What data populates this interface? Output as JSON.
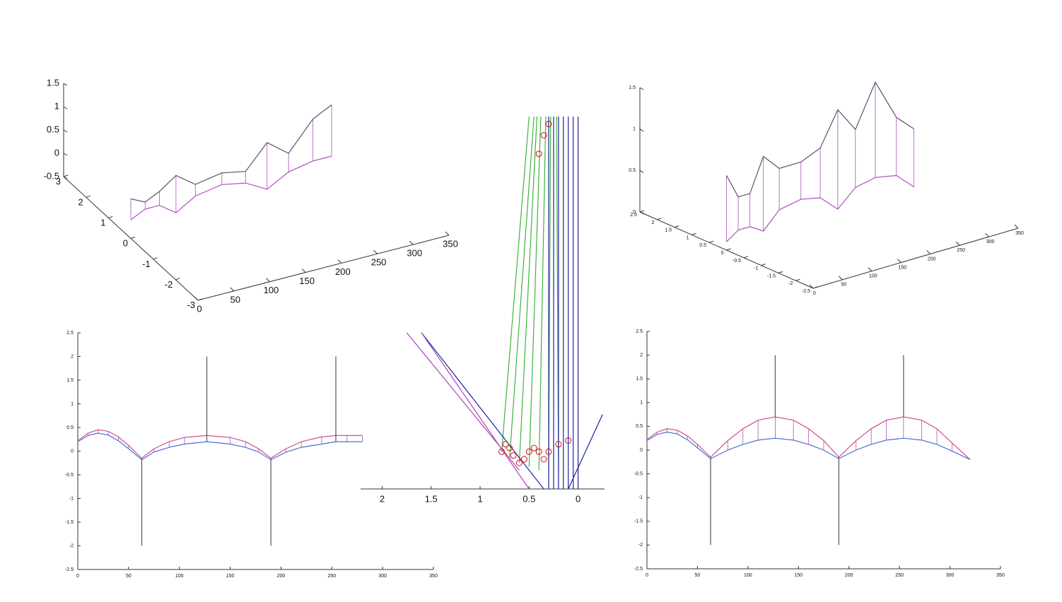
{
  "chart_data": [
    {
      "type": "line3d",
      "xlim": [
        0,
        350
      ],
      "ylim": [
        -3,
        3
      ],
      "zlim": [
        -0.5,
        1.5
      ],
      "xticks": [
        0,
        50,
        100,
        150,
        200,
        250,
        300,
        350
      ],
      "yticks": [
        -3,
        -2,
        -1,
        0,
        1,
        2,
        3
      ],
      "zticks": [
        -0.5,
        0,
        0.5,
        1,
        1.5
      ],
      "x": [
        0,
        20,
        40,
        63,
        90,
        127,
        160,
        190,
        220,
        254,
        280
      ],
      "hatch_color": "#b04fbf",
      "series": [
        {
          "color": "#555566",
          "values": [
            0.35,
            0.2,
            0.35,
            0.6,
            0.3,
            0.4,
            0.3,
            0.8,
            0.45,
            1.05,
            1.25
          ]
        },
        {
          "color": "#b04fbf",
          "values": [
            -0.1,
            0.05,
            0.05,
            -0.2,
            0.05,
            0.15,
            0.05,
            -0.2,
            0.05,
            0.15,
            0.15
          ]
        }
      ]
    },
    {
      "type": "line3d",
      "xlim": [
        0,
        350
      ],
      "ylim": [
        -2.5,
        2.5
      ],
      "zlim": [
        0,
        1.5
      ],
      "xticks": [
        0,
        50,
        100,
        150,
        200,
        250,
        300,
        350
      ],
      "yticks": [
        -2.5,
        -2,
        -1.5,
        -1,
        -0.5,
        0,
        0.5,
        1,
        1.5,
        2,
        2.5
      ],
      "zticks": [
        0,
        0.5,
        1,
        1.5
      ],
      "x": [
        0,
        20,
        40,
        63,
        90,
        127,
        160,
        190,
        220,
        254,
        290,
        320
      ],
      "hatch_color": "#b04fbf",
      "series": [
        {
          "color": "#555566",
          "values": [
            0.9,
            0.6,
            0.6,
            1.0,
            0.8,
            0.8,
            0.9,
            1.3,
            1.0,
            1.5,
            1.0,
            0.8
          ]
        },
        {
          "color": "#b04fbf",
          "values": [
            0.1,
            0.2,
            0.2,
            0.1,
            0.3,
            0.35,
            0.3,
            0.1,
            0.3,
            0.35,
            0.3,
            0.1
          ]
        }
      ]
    },
    {
      "type": "line",
      "xlim": [
        0,
        350
      ],
      "ylim": [
        -2.5,
        2.5
      ],
      "xticks": [
        0,
        50,
        100,
        150,
        200,
        250,
        300,
        350
      ],
      "yticks": [
        -2.5,
        -2,
        -1.5,
        -1,
        -0.5,
        0,
        0.5,
        1,
        1.5,
        2,
        2.5
      ],
      "x": [
        0,
        10,
        20,
        30,
        40,
        50,
        63,
        75,
        90,
        105,
        127,
        150,
        165,
        178,
        190,
        205,
        220,
        240,
        254,
        265,
        280
      ],
      "hatch_color": "#b04fbf",
      "series": [
        {
          "color": "#d0508a",
          "values": [
            0.22,
            0.38,
            0.45,
            0.42,
            0.3,
            0.12,
            -0.15,
            0.05,
            0.2,
            0.29,
            0.33,
            0.29,
            0.2,
            0.05,
            -0.15,
            0.05,
            0.2,
            0.3,
            0.33,
            0.33,
            0.33
          ]
        },
        {
          "color": "#4a6fd0",
          "values": [
            0.2,
            0.33,
            0.38,
            0.34,
            0.22,
            0.05,
            -0.18,
            -0.02,
            0.08,
            0.15,
            0.2,
            0.15,
            0.08,
            -0.02,
            -0.18,
            -0.02,
            0.08,
            0.15,
            0.2,
            0.2,
            0.2
          ]
        },
        {
          "color": "#555555",
          "x": [
            63,
            63,
            63,
            127,
            127,
            127,
            190,
            190,
            190,
            254,
            254,
            254
          ],
          "values": [
            -0.15,
            -2,
            null,
            0.2,
            2,
            null,
            -0.15,
            -2,
            null,
            0.2,
            2,
            null
          ]
        }
      ]
    },
    {
      "type": "line",
      "xlim": [
        2.22,
        -0.27
      ],
      "ylim": [
        0,
        1
      ],
      "xticks": [
        2,
        1.5,
        1,
        0.5,
        0
      ],
      "series": [
        {
          "color": "#3cb43c",
          "x": [
            0.78,
            0.5,
            0.5,
            0.7,
            0.45,
            0.45,
            0.6,
            0.42,
            0.42,
            0.5,
            0.38,
            0.38,
            0.4,
            0.33,
            0.33,
            0.3,
            0.28,
            0.28,
            0.2,
            0.22
          ],
          "values": [
            0.1,
            1,
            null,
            0.08,
            1,
            null,
            0.07,
            1,
            null,
            0.06,
            1,
            null,
            0.05,
            1,
            null,
            0.05,
            1,
            null,
            0.05,
            1
          ]
        },
        {
          "color": "#2020a0",
          "x": [
            0.3,
            0.3,
            0.3,
            0.25,
            0.25,
            0.25,
            0.2,
            0.2,
            0.2,
            0.15,
            0.15,
            0.15,
            0.1,
            0.1,
            0.1,
            0.05,
            0.05,
            0.05,
            0,
            0,
            0,
            1.6,
            0.35,
            0.35,
            -0.25,
            0.1
          ],
          "values": [
            0,
            1,
            null,
            0,
            1,
            null,
            0,
            1,
            null,
            0,
            1,
            null,
            0,
            1,
            null,
            0,
            1,
            null,
            0,
            1,
            null,
            0.42,
            0,
            null,
            0.2,
            0
          ]
        },
        {
          "color": "#b040c0",
          "x": [
            1.75,
            0.6,
            0.6,
            1.6,
            0.5
          ],
          "values": [
            0.42,
            0.05,
            null,
            0.42,
            0
          ]
        },
        {
          "color": "#d01010",
          "mode": "markers",
          "x": [
            0.78,
            0.74,
            0.7,
            0.66,
            0.6,
            0.55,
            0.5,
            0.45,
            0.4,
            0.35,
            0.3,
            0.2,
            0.1,
            0.35,
            0.3,
            0.4
          ],
          "values": [
            0.1,
            0.12,
            0.11,
            0.09,
            0.07,
            0.08,
            0.1,
            0.11,
            0.1,
            0.08,
            0.1,
            0.12,
            0.13,
            0.95,
            0.98,
            0.9
          ]
        }
      ]
    },
    {
      "type": "line",
      "xlim": [
        0,
        350
      ],
      "ylim": [
        -2.5,
        2.5
      ],
      "xticks": [
        0,
        50,
        100,
        150,
        200,
        250,
        300,
        350
      ],
      "yticks": [
        -2.5,
        -2,
        -1.5,
        -1,
        -0.5,
        0,
        0.5,
        1,
        1.5,
        2,
        2.5
      ],
      "x": [
        0,
        10,
        20,
        30,
        40,
        50,
        63,
        80,
        95,
        110,
        127,
        145,
        160,
        175,
        190,
        207,
        222,
        237,
        254,
        272,
        287,
        302,
        320
      ],
      "hatch_color": "#b04fbf",
      "series": [
        {
          "color": "#d0508a",
          "values": [
            0.22,
            0.38,
            0.45,
            0.42,
            0.3,
            0.12,
            -0.15,
            0.2,
            0.45,
            0.63,
            0.7,
            0.63,
            0.45,
            0.2,
            -0.15,
            0.2,
            0.45,
            0.63,
            0.7,
            0.63,
            0.45,
            0.15,
            -0.2
          ]
        },
        {
          "color": "#4a6fd0",
          "values": [
            0.2,
            0.33,
            0.38,
            0.34,
            0.22,
            0.05,
            -0.18,
            0.0,
            0.12,
            0.21,
            0.25,
            0.21,
            0.12,
            0.0,
            -0.18,
            0.0,
            0.12,
            0.21,
            0.25,
            0.21,
            0.12,
            -0.02,
            -0.2
          ]
        },
        {
          "color": "#555555",
          "x": [
            63,
            63,
            63,
            127,
            127,
            127,
            190,
            190,
            190,
            254,
            254,
            254
          ],
          "values": [
            -0.15,
            -2,
            null,
            0.7,
            2,
            null,
            -0.15,
            -2,
            null,
            0.7,
            2,
            null
          ]
        }
      ]
    }
  ]
}
